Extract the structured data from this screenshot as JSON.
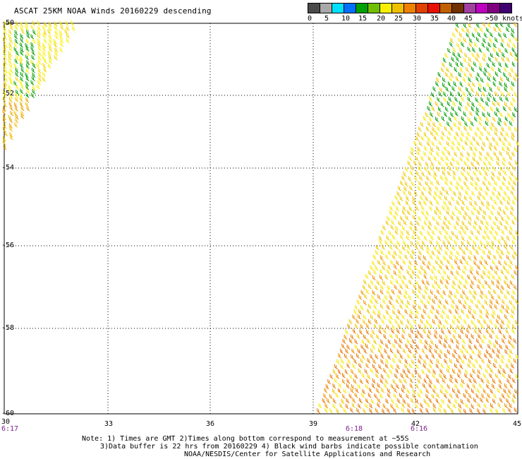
{
  "title": "ASCAT 25KM NOAA Winds 20160229 descending",
  "legend": {
    "colors": [
      "#4a4a4a",
      "#a8a8a8",
      "#00e0ff",
      "#0070ff",
      "#00a000",
      "#70c000",
      "#f8f000",
      "#f0c000",
      "#f08000",
      "#e04000",
      "#e81000",
      "#c06000",
      "#703000",
      "#a040a0",
      "#c000c0",
      "#800080",
      "#400070"
    ],
    "labels": [
      "0",
      "5",
      "10",
      "15",
      "20",
      "25",
      "30",
      "35",
      "40",
      "45",
      ">50 knots"
    ]
  },
  "lat_labels": [
    "-50",
    "-52",
    "-54",
    "-56",
    "-58",
    "-60"
  ],
  "lon_labels": [
    "30",
    "33",
    "36",
    "39",
    "42",
    "45"
  ],
  "times": [
    "6:17",
    "6:18",
    "6:16"
  ],
  "notes": {
    "line1": "Note: 1) Times are GMT 2)Times along bottom correspond to measurement at ~55S",
    "line2": "3)Data buffer is 22 hrs from 20160229 4) Black wind barbs indicate possible contamination",
    "line3": "NOAA/NESDIS/Center for Satellite Applications and Research"
  }
}
